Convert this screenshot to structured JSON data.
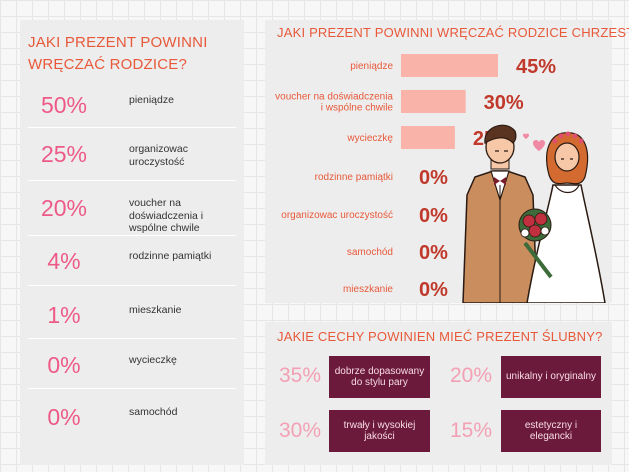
{
  "left": {
    "title": "JAKI PREZENT POWINNI WRĘCZAĆ RODZICE?",
    "items": [
      {
        "pct": "50%",
        "label": "pieniądze"
      },
      {
        "pct": "25%",
        "label": "organizowac uroczystość"
      },
      {
        "pct": "20%",
        "label": "voucher na doświadczenia i wspólne chwile"
      },
      {
        "pct": "4%",
        "label": "rodzinne pamiątki"
      },
      {
        "pct": "1%",
        "label": "mieszkanie"
      },
      {
        "pct": "0%",
        "label": "wycieczkę"
      },
      {
        "pct": "0%",
        "label": "samochód"
      }
    ]
  },
  "chart_data": {
    "type": "bar",
    "title": "JAKI PREZENT POWINNI WRĘCZAĆ RODZICE CHRZESTNI?",
    "categories": [
      "pieniądze",
      "voucher na doświadczenia\ni wspólne chwile",
      "wycieczkę",
      "rodzinne pamiątki",
      "organizowac uroczystość",
      "samochód",
      "mieszkanie"
    ],
    "values": [
      45,
      30,
      25,
      0,
      0,
      0,
      0
    ],
    "value_labels": [
      "45%",
      "30%",
      "25%",
      "0%",
      "0%",
      "0%",
      "0%"
    ],
    "orientation": "horizontal",
    "xlim": [
      0,
      45
    ],
    "grid": false,
    "colors": {
      "bar": "#f9b3a8",
      "value": "#c0392b",
      "label": "#e8593a"
    }
  },
  "traits": {
    "title": "JAKIE CECHY POWINIEN MIEĆ PREZENT ŚLUBNY?",
    "items": [
      {
        "pct": "35%",
        "label": "dobrze dopasowany do stylu pary"
      },
      {
        "pct": "20%",
        "label": "unikalny i oryginalny"
      },
      {
        "pct": "30%",
        "label": "trwały i wysokiej jakości"
      },
      {
        "pct": "15%",
        "label": "estetyczny i elegancki"
      }
    ]
  },
  "illustration": {
    "icon": "wedding-couple-illustration"
  }
}
